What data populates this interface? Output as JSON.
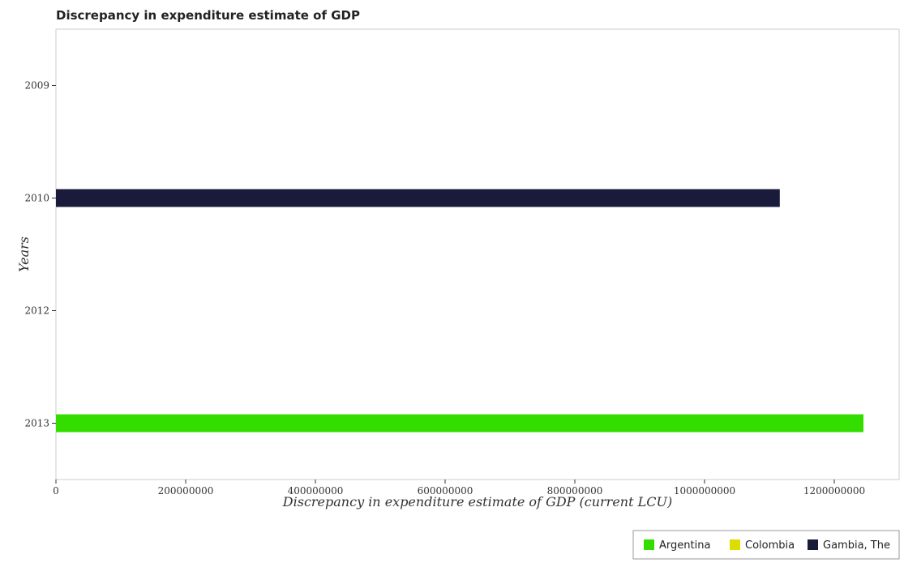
{
  "chart_data": {
    "type": "bar",
    "orientation": "horizontal",
    "title": "Discrepancy in expenditure estimate of GDP",
    "xlabel": "Discrepancy in expenditure estimate of GDP (current LCU)",
    "ylabel": "Years",
    "categories": [
      "2009",
      "2010",
      "2012",
      "2013"
    ],
    "xlim": [
      0,
      1300000000
    ],
    "xticks": [
      0,
      200000000,
      400000000,
      600000000,
      800000000,
      1000000000,
      1200000000
    ],
    "xtick_labels": [
      "0",
      "200000000",
      "400000000",
      "600000000",
      "800000000",
      "1000000000",
      "1200000000"
    ],
    "series": [
      {
        "name": "Argentina",
        "color": "#33dd00",
        "values": [
          0,
          0,
          0,
          1245000000
        ]
      },
      {
        "name": "Colombia",
        "color": "#dddd00",
        "values": [
          0,
          0,
          0,
          0
        ]
      },
      {
        "name": "Gambia, The",
        "color": "#1a1a3a",
        "values": [
          0,
          1116000000,
          0,
          0
        ]
      }
    ],
    "legend_position": "bottom-right",
    "grid": false
  }
}
